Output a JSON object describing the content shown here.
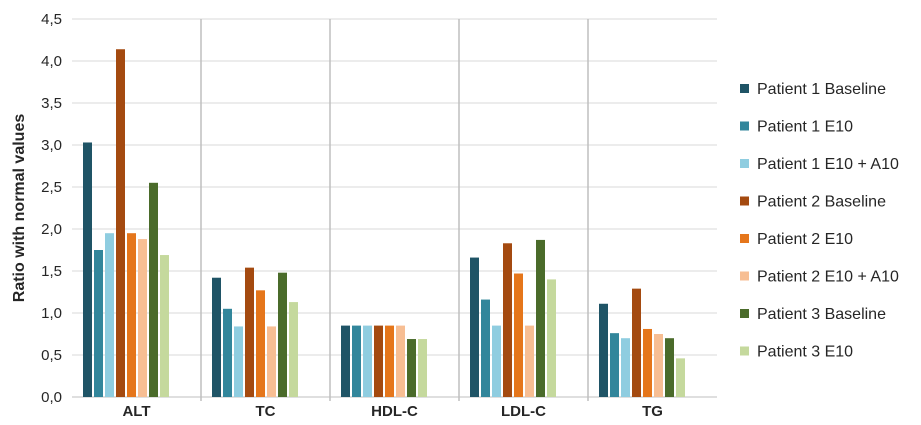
{
  "chart_data": {
    "type": "bar",
    "title": "",
    "xlabel": "",
    "ylabel": "Ratio with normal values",
    "ylim": [
      0,
      4.5
    ],
    "ytick_step": 0.5,
    "ytick_labels": [
      "0,0",
      "0,5",
      "1,0",
      "1,5",
      "2,0",
      "2,5",
      "3,0",
      "3,5",
      "4,0",
      "4,5"
    ],
    "grid": true,
    "category_separators": true,
    "legend_position": "right",
    "categories": [
      "ALT",
      "TC",
      "HDL-C",
      "LDL-C",
      "TG"
    ],
    "series": [
      {
        "name": "Patient 1 Baseline",
        "color": "#1f5466",
        "values": [
          3.03,
          1.42,
          0.85,
          1.66,
          1.11
        ]
      },
      {
        "name": "Patient 1 E10",
        "color": "#32869b",
        "values": [
          1.75,
          1.05,
          0.85,
          1.16,
          0.76
        ]
      },
      {
        "name": "Patient 1 E10 + A10",
        "color": "#8fcde0",
        "values": [
          1.95,
          0.84,
          0.85,
          0.85,
          0.7
        ]
      },
      {
        "name": "Patient 2 Baseline",
        "color": "#a44a10",
        "values": [
          4.14,
          1.54,
          0.85,
          1.83,
          1.29
        ]
      },
      {
        "name": "Patient 2 E10",
        "color": "#e5761b",
        "values": [
          1.95,
          1.27,
          0.85,
          1.47,
          0.81
        ]
      },
      {
        "name": "Patient 2 E10 + A10",
        "color": "#f7be93",
        "values": [
          1.88,
          0.84,
          0.85,
          0.85,
          0.75
        ]
      },
      {
        "name": "Patient 3 Baseline",
        "color": "#4a6b2a",
        "values": [
          2.55,
          1.48,
          0.69,
          1.87,
          0.7
        ]
      },
      {
        "name": "Patient 3 E10",
        "color": "#c5d99d",
        "values": [
          1.69,
          1.13,
          0.69,
          1.4,
          0.46
        ]
      }
    ]
  }
}
